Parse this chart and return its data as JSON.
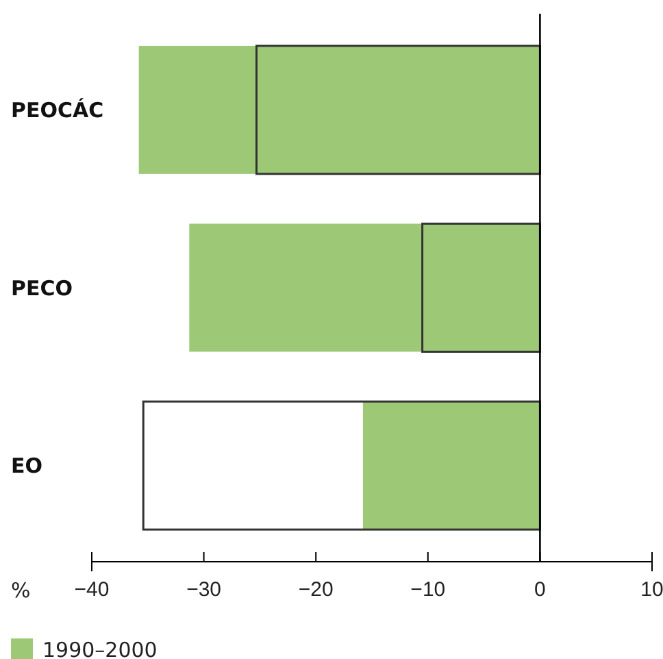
{
  "chart_data": {
    "type": "bar",
    "orientation": "horizontal",
    "categories": [
      "PEOCÁC",
      "PECO",
      "EO"
    ],
    "series": [
      {
        "name": "1990–2000",
        "color": "#9dc977",
        "values": [
          -35.8,
          -31.3,
          -15.8
        ]
      },
      {
        "color": "#333333",
        "values": [
          -25.3,
          -10.5,
          -35.4
        ]
      }
    ],
    "xlim": [
      -40,
      10
    ],
    "xticks": [
      {
        "value": -40,
        "label": "−40"
      },
      {
        "value": -30,
        "label": "−30"
      },
      {
        "value": -20,
        "label": "−20"
      },
      {
        "value": -10,
        "label": "−10"
      },
      0,
      10
    ],
    "xlabel": "%",
    "legend": "bottom left"
  }
}
